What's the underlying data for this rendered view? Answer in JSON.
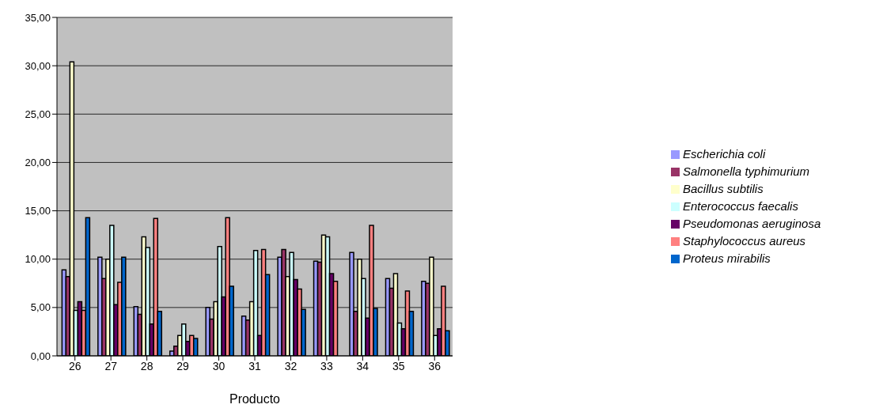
{
  "chart_data": {
    "type": "bar",
    "xlabel": "Producto",
    "categories": [
      "26",
      "27",
      "28",
      "29",
      "30",
      "31",
      "32",
      "33",
      "34",
      "35",
      "36"
    ],
    "series": [
      {
        "name": "Escherichia coli",
        "color": "#9999ff",
        "values": [
          8.9,
          10.2,
          5.1,
          0.5,
          5.0,
          4.1,
          10.2,
          9.8,
          10.7,
          8.0,
          7.7
        ]
      },
      {
        "name": "Salmonella  typhimurium",
        "color": "#993366",
        "values": [
          8.2,
          8.0,
          4.3,
          1.0,
          3.8,
          3.7,
          11.0,
          9.7,
          4.6,
          7.0,
          7.5
        ]
      },
      {
        "name": "Bacillus subtilis",
        "color": "#ffffcc",
        "values": [
          30.4,
          10.0,
          12.3,
          2.1,
          5.6,
          5.6,
          8.2,
          12.5,
          10.0,
          8.5,
          10.2
        ]
      },
      {
        "name": "Enterococcus faecalis",
        "color": "#ccffff",
        "values": [
          4.7,
          13.5,
          11.2,
          3.3,
          11.3,
          10.9,
          10.7,
          12.3,
          8.0,
          3.4,
          2.1
        ]
      },
      {
        "name": "Pseudomonas aeruginosa",
        "color": "#660066",
        "values": [
          5.6,
          5.3,
          3.3,
          1.5,
          6.1,
          2.1,
          7.9,
          8.5,
          3.9,
          2.8,
          2.8
        ]
      },
      {
        "name": "Staphylococcus aureus",
        "color": "#ff8080",
        "values": [
          4.7,
          7.6,
          14.2,
          2.1,
          14.3,
          11.0,
          6.9,
          7.7,
          13.5,
          6.7,
          7.2
        ]
      },
      {
        "name": "Proteus mirabilis",
        "color": "#0066cc",
        "values": [
          14.3,
          10.2,
          4.6,
          1.8,
          7.2,
          8.4,
          4.8,
          null,
          4.9,
          4.6,
          2.6
        ]
      }
    ],
    "ylim": [
      0,
      35
    ],
    "yticks": [
      {
        "value": 0,
        "label": "0,00"
      },
      {
        "value": 5,
        "label": "5,00"
      },
      {
        "value": 10,
        "label": "10,00"
      },
      {
        "value": 15,
        "label": "15,00"
      },
      {
        "value": 20,
        "label": "20,00"
      },
      {
        "value": 25,
        "label": "25,00"
      },
      {
        "value": 30,
        "label": "30,00"
      },
      {
        "value": 35,
        "label": "35,00"
      }
    ],
    "grid": "y",
    "legend": "right"
  }
}
